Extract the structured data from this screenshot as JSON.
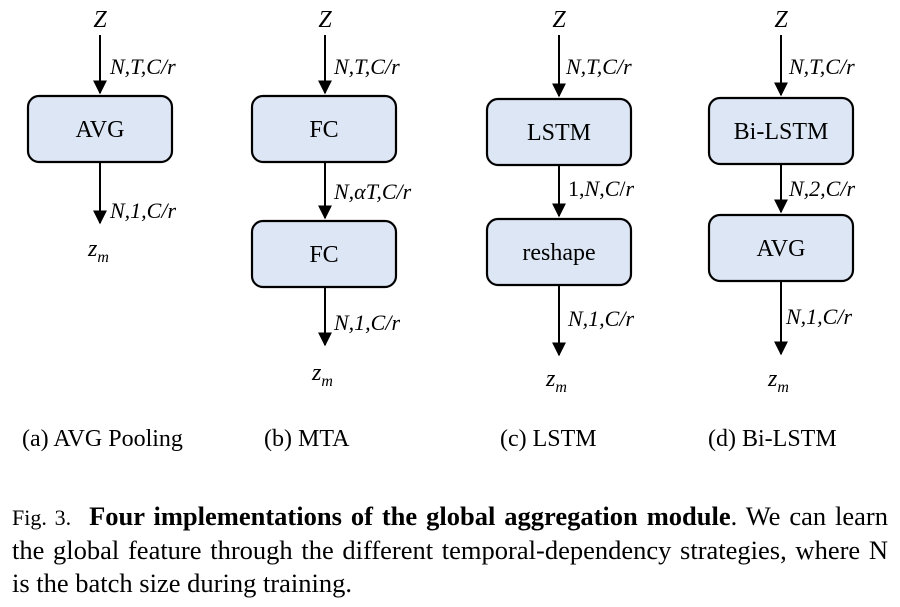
{
  "diagrams": [
    {
      "input": "Z",
      "edges": [
        "N,T,C/r",
        "N,1,C/r"
      ],
      "blocks": [
        "AVG"
      ],
      "output": "zm",
      "subcaption": "(a) AVG Pooling"
    },
    {
      "input": "Z",
      "edges": [
        "N,T,C/r",
        "N,αT,C/r",
        "N,1,C/r"
      ],
      "blocks": [
        "FC",
        "FC"
      ],
      "output": "zm",
      "subcaption": "(b) MTA"
    },
    {
      "input": "Z",
      "edges": [
        "N,T,C/r",
        "1,N,C/r",
        "N,1,C/r"
      ],
      "blocks": [
        "LSTM",
        "reshape"
      ],
      "output": "zm",
      "subcaption": "(c) LSTM"
    },
    {
      "input": "Z",
      "edges": [
        "N,T,C/r",
        "N,2,C/r",
        "N,1,C/r"
      ],
      "blocks": [
        "Bi-LSTM",
        "AVG"
      ],
      "output": "zm",
      "subcaption": "(d) Bi-LSTM"
    }
  ],
  "caption": {
    "fig_label": "Fig. 3.",
    "title": "Four implementations of the global aggregation module",
    "title_end": ".",
    "body": "We can learn the global feature through the different temporal-dependency strategies, where N is the batch size during training."
  }
}
